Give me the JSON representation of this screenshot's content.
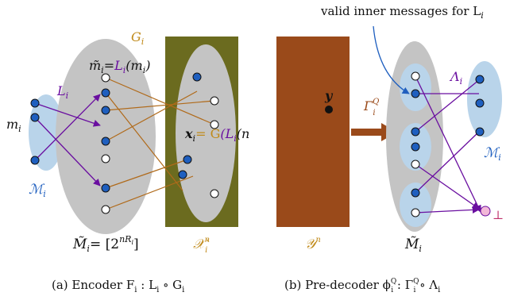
{
  "colors": {
    "blob_gray": "#c4c4c4",
    "blob_blue": "#b9d4ea",
    "node_blue": "#1f5fbf",
    "olive": "#6b6b1f",
    "rust": "#9a4a1a",
    "purple": "#6a0fa0",
    "orange_line": "#b06a1a",
    "gold_label": "#c08a1a",
    "pink_dot": "#f2b8d8"
  },
  "labels": {
    "top_note": "valid inner messages for L",
    "top_note_sub": "i",
    "G_i": "G",
    "G_i_sub": "i",
    "m_tilde_eq": "m̃",
    "m_tilde_sub": "i",
    "m_tilde_rhs": "=",
    "L_i_func": "L",
    "L_i_func_sub": "i",
    "L_i_arg": "(m",
    "L_i_arg_sub": "i",
    "L_i_close": ")",
    "L_i": "L",
    "L_i_sub": "i",
    "m_i": "m",
    "m_i_sub": "i",
    "M_i": "ℳ",
    "M_i_sub": "i",
    "x_i": "x",
    "x_i_sub": "i",
    "x_eq": "= G",
    "x_rest": "(L",
    "x_rest_sub": "i",
    "x_rest2": "(n",
    "y": "y",
    "Gamma": "Γ",
    "Gamma_sup": "Q",
    "Gamma_sub": "i",
    "Lambda": "Λ",
    "Lambda_sub": "i",
    "M_i_right": "ℳ",
    "M_i_right_sub": "i",
    "perp": "⊥",
    "Mtilde_left": "M̃",
    "Mtilde_left_sub": "i",
    "Mtilde_left_rhs": "= [2",
    "Mtilde_left_sup": "nR",
    "Mtilde_left_sup_sub": "i",
    "Mtilde_left_close": "]",
    "X_n": "𝒳",
    "X_n_sup": "n",
    "X_n_sub": "i",
    "Y_n": "𝒴",
    "Y_n_sup": "n",
    "Mtilde_right": "M̃",
    "Mtilde_right_sub": "i"
  },
  "captions": {
    "left": "(a) Encoder F",
    "left_sub": "i",
    "left_rest": " : L",
    "left_rest_sub": "i",
    "left_rest2": " ∘ G",
    "left_rest2_sub": "i",
    "right": "(b) Pre-decoder ϕ",
    "right_sup": "Q",
    "right_sub": "i",
    "right_rest": " : Γ",
    "right_rest_sup": "Q",
    "right_rest_sub": "i",
    "right_rest2": " ∘ Λ",
    "right_rest2_sub": "i"
  }
}
